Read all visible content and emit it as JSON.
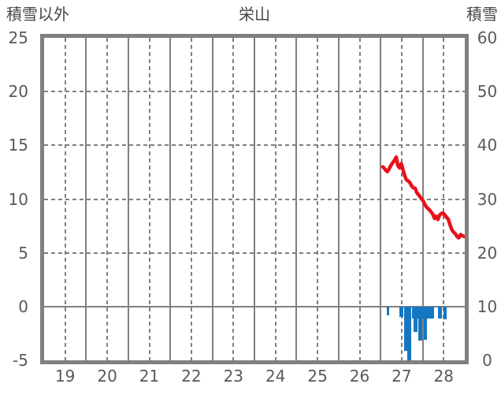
{
  "header": {
    "left_axis_title": "積雪以外",
    "title": "栄山",
    "right_axis_title": "積雪"
  },
  "chart_data": {
    "type": "line",
    "title": "栄山",
    "x_axis": {
      "range": [
        19,
        29
      ],
      "unit": "day",
      "tick_labels": [
        "19",
        "20",
        "21",
        "22",
        "23",
        "24",
        "25",
        "26",
        "27",
        "28"
      ],
      "tick_label_positions": [
        19.5,
        20.5,
        21.5,
        22.5,
        23.5,
        24.5,
        25.5,
        26.5,
        27.5,
        28.5
      ],
      "solid_gridlines": [
        20,
        21,
        22,
        23,
        24,
        25,
        26,
        27,
        28
      ],
      "dashed_gridlines": [
        19.5,
        20.5,
        21.5,
        22.5,
        23.5,
        24.5,
        25.5,
        26.5,
        27.5,
        28.5
      ]
    },
    "left_axis": {
      "title": "積雪以外",
      "range": [
        -5,
        25
      ],
      "tick_values": [
        25,
        20,
        15,
        10,
        5,
        0,
        -5
      ],
      "tick_labels": [
        "25",
        "20",
        "15",
        "10",
        "5",
        "0",
        "-5"
      ],
      "dashed_gridlines": [
        20,
        15,
        10,
        5
      ],
      "zero_line": 0
    },
    "right_axis": {
      "title": "積雪",
      "range": [
        0,
        60
      ],
      "tick_labels": [
        "60",
        "50",
        "40",
        "30",
        "20",
        "10",
        "0"
      ]
    },
    "grid": true,
    "legend": "none",
    "colors": {
      "line": "#e8111a",
      "bar": "#1577c2",
      "grid": "#808080",
      "tick_text": "#595959",
      "title_text": "#484848"
    },
    "series": [
      {
        "name": "temperature-line",
        "type": "line",
        "axis": "left",
        "color": "#e8111a",
        "points": [
          {
            "t": 27.05,
            "v": 13.0
          },
          {
            "t": 27.08,
            "v": 12.9
          },
          {
            "t": 27.12,
            "v": 12.7
          },
          {
            "t": 27.16,
            "v": 12.55
          },
          {
            "t": 27.2,
            "v": 12.8
          },
          {
            "t": 27.24,
            "v": 13.1
          },
          {
            "t": 27.28,
            "v": 13.35
          },
          {
            "t": 27.33,
            "v": 13.6
          },
          {
            "t": 27.37,
            "v": 13.9
          },
          {
            "t": 27.41,
            "v": 13.1
          },
          {
            "t": 27.45,
            "v": 12.9
          },
          {
            "t": 27.49,
            "v": 13.3
          },
          {
            "t": 27.53,
            "v": 12.75
          },
          {
            "t": 27.57,
            "v": 12.2
          },
          {
            "t": 27.61,
            "v": 11.8
          },
          {
            "t": 27.65,
            "v": 11.7
          },
          {
            "t": 27.7,
            "v": 11.5
          },
          {
            "t": 27.74,
            "v": 11.2
          },
          {
            "t": 27.78,
            "v": 11.05
          },
          {
            "t": 27.82,
            "v": 11.0
          },
          {
            "t": 27.86,
            "v": 10.6
          },
          {
            "t": 27.9,
            "v": 10.4
          },
          {
            "t": 27.95,
            "v": 10.15
          },
          {
            "t": 28.0,
            "v": 9.9
          },
          {
            "t": 28.04,
            "v": 9.6
          },
          {
            "t": 28.08,
            "v": 9.3
          },
          {
            "t": 28.12,
            "v": 9.15
          },
          {
            "t": 28.16,
            "v": 9.0
          },
          {
            "t": 28.2,
            "v": 8.8
          },
          {
            "t": 28.24,
            "v": 8.6
          },
          {
            "t": 28.28,
            "v": 8.2
          },
          {
            "t": 28.32,
            "v": 8.4
          },
          {
            "t": 28.36,
            "v": 8.1
          },
          {
            "t": 28.4,
            "v": 8.5
          },
          {
            "t": 28.44,
            "v": 8.65
          },
          {
            "t": 28.48,
            "v": 8.7
          },
          {
            "t": 28.52,
            "v": 8.55
          },
          {
            "t": 28.57,
            "v": 8.3
          },
          {
            "t": 28.61,
            "v": 8.1
          },
          {
            "t": 28.65,
            "v": 7.6
          },
          {
            "t": 28.7,
            "v": 7.1
          },
          {
            "t": 28.74,
            "v": 6.9
          },
          {
            "t": 28.78,
            "v": 6.75
          },
          {
            "t": 28.82,
            "v": 6.5
          },
          {
            "t": 28.86,
            "v": 6.4
          },
          {
            "t": 28.9,
            "v": 6.7
          },
          {
            "t": 28.94,
            "v": 6.6
          },
          {
            "t": 29.0,
            "v": 6.5
          }
        ]
      },
      {
        "name": "precipitation-bars",
        "type": "bar",
        "axis": "left",
        "color": "#1577c2",
        "points": [
          {
            "t": 27.17,
            "v": -0.8
          },
          {
            "t": 27.47,
            "v": -1.0
          },
          {
            "t": 27.51,
            "v": -1.0
          },
          {
            "t": 27.58,
            "v": -4.1
          },
          {
            "t": 27.62,
            "v": -4.1
          },
          {
            "t": 27.66,
            "v": -5.0
          },
          {
            "t": 27.7,
            "v": -5.0
          },
          {
            "t": 27.76,
            "v": -1.1
          },
          {
            "t": 27.8,
            "v": -2.35
          },
          {
            "t": 27.84,
            "v": -2.35
          },
          {
            "t": 27.88,
            "v": -1.1
          },
          {
            "t": 27.92,
            "v": -3.15
          },
          {
            "t": 27.96,
            "v": -3.15
          },
          {
            "t": 28.0,
            "v": -1.1
          },
          {
            "t": 28.04,
            "v": -3.1
          },
          {
            "t": 28.08,
            "v": -3.1
          },
          {
            "t": 28.12,
            "v": -1.1
          },
          {
            "t": 28.16,
            "v": -1.1
          },
          {
            "t": 28.2,
            "v": -1.1
          },
          {
            "t": 28.24,
            "v": -1.1
          },
          {
            "t": 28.38,
            "v": -1.1
          },
          {
            "t": 28.42,
            "v": -1.1
          },
          {
            "t": 28.51,
            "v": -1.2
          },
          {
            "t": 28.55,
            "v": -1.2
          }
        ]
      }
    ]
  }
}
